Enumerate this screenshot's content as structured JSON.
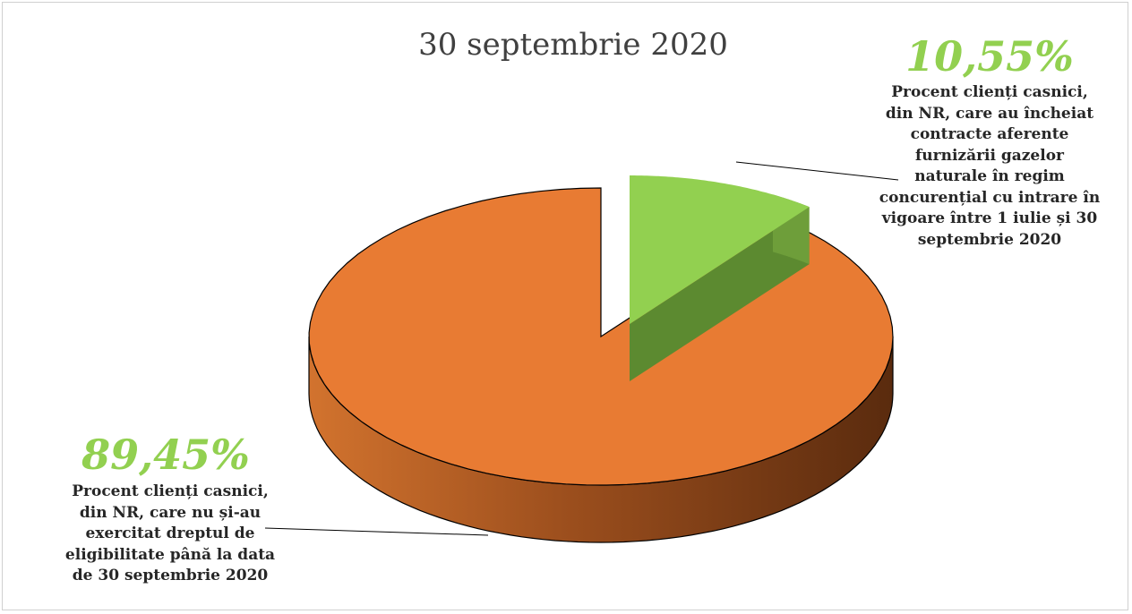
{
  "chart_data": {
    "type": "pie",
    "title": "30 septembrie 2020",
    "slices": [
      {
        "value": 89.45,
        "value_label": "89,45%",
        "label_lines": [
          "Procent clienți casnici,",
          "din NR, care nu și-au",
          "exercitat dreptul de",
          "eligibilitate până la data",
          "de 30 septembrie 2020"
        ],
        "color": "#E87B33"
      },
      {
        "value": 10.55,
        "value_label": "10,55%",
        "label_lines": [
          "Procent clienți casnici,",
          "din NR, care au încheiat",
          "contracte aferente",
          "furnizării gazelor",
          "naturale în regim",
          "concurențial cu intrare în",
          "vigoare între 1 iulie și 30",
          "septembrie 2020"
        ],
        "color": "#92D050"
      }
    ],
    "exploded_slice": 1,
    "style": "3d",
    "value_label_color": "#92D050"
  }
}
